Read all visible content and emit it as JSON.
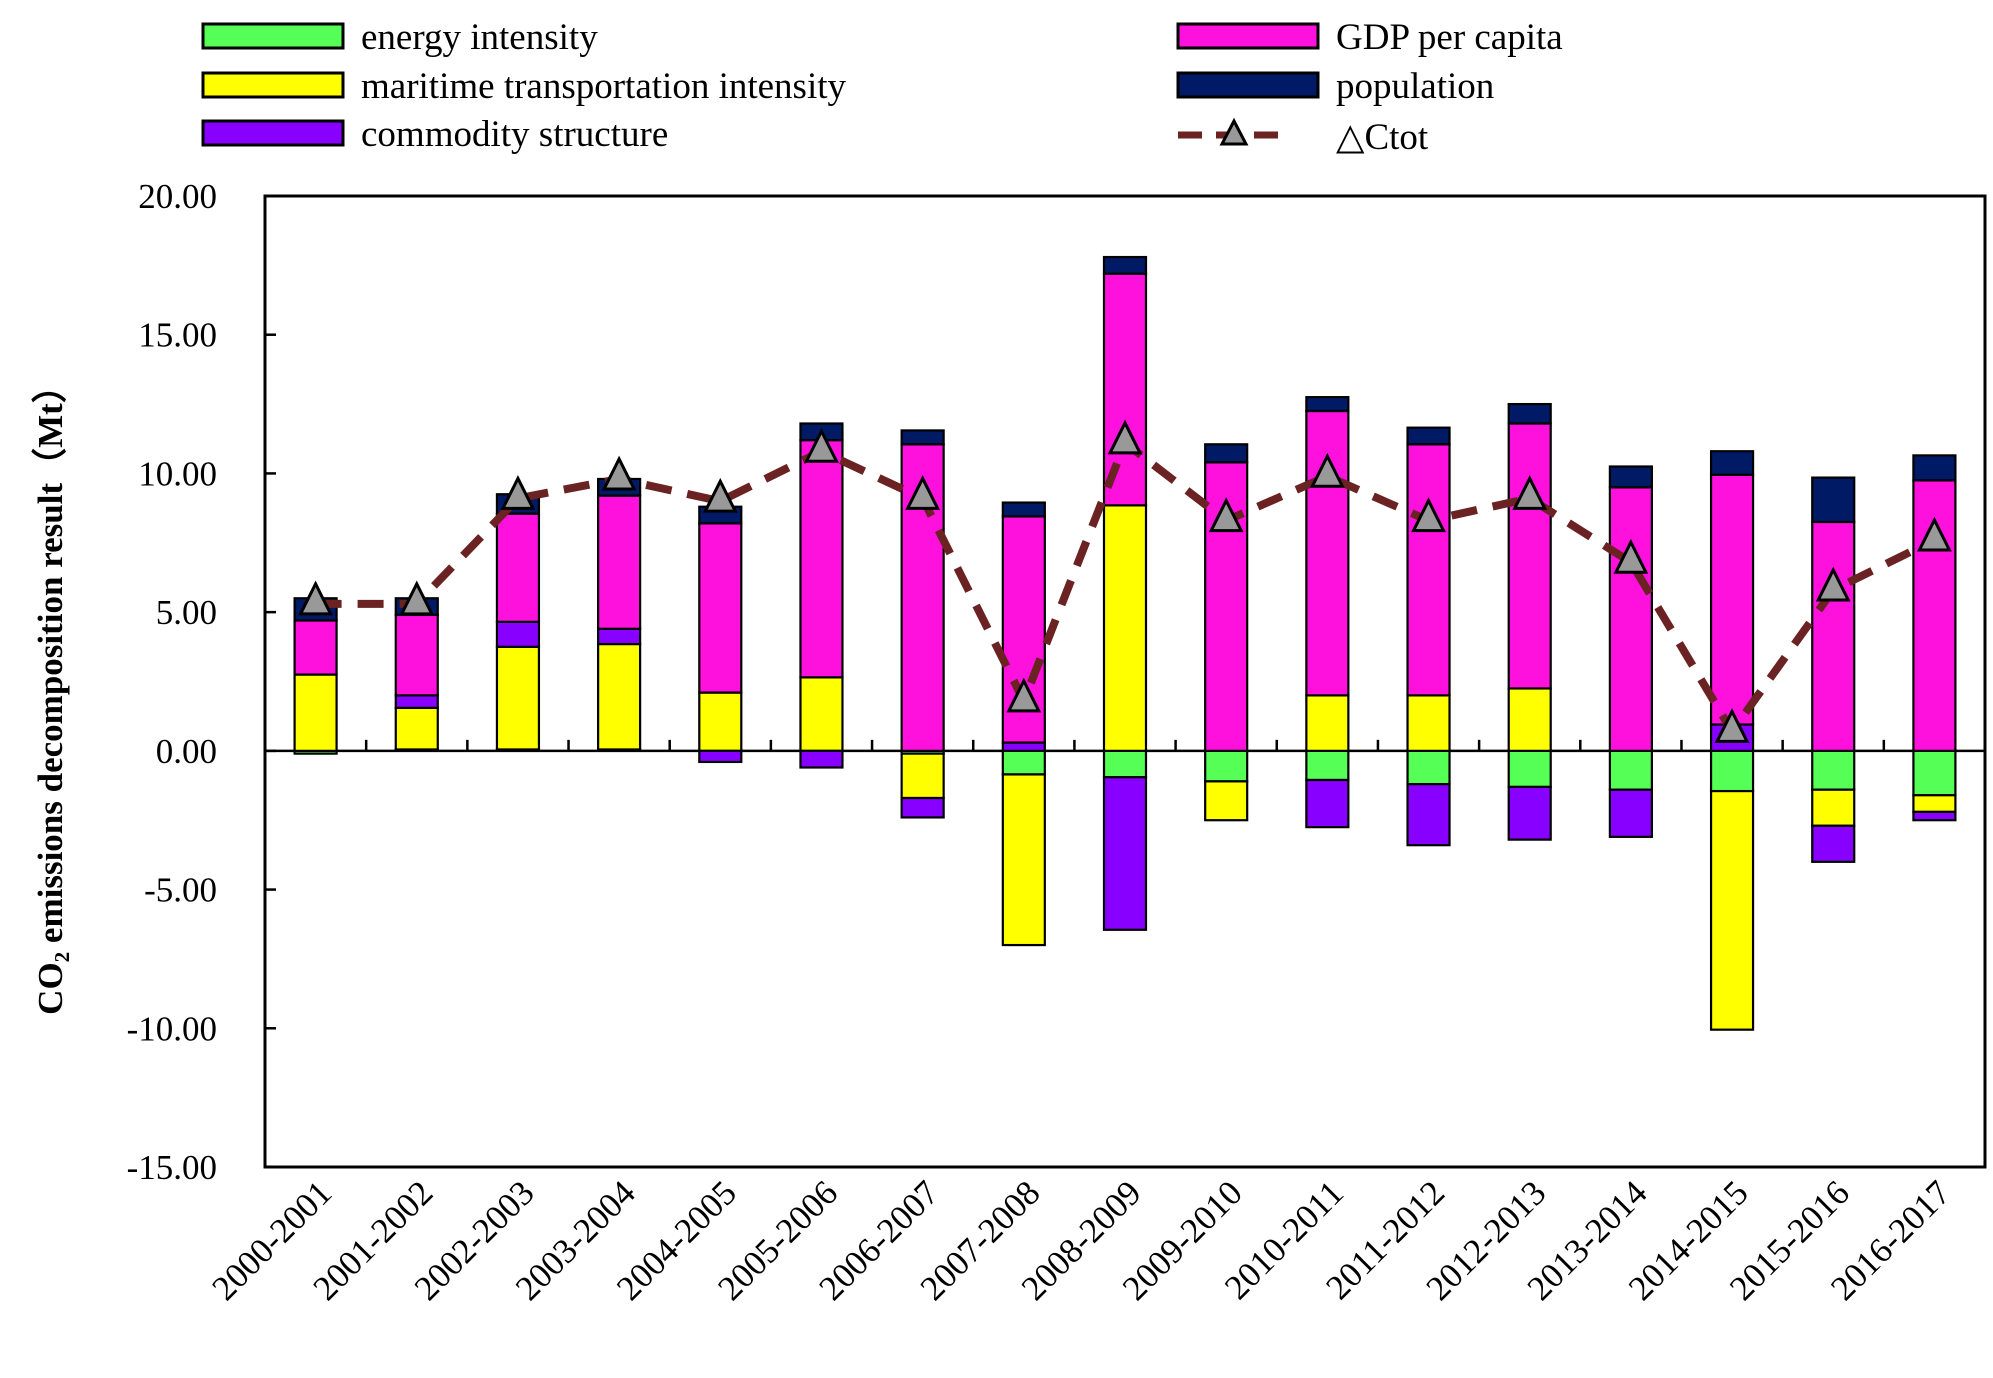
{
  "chart_data": {
    "type": "bar",
    "stacked": true,
    "ylabel": "CO₂ emissions decomposition result（Mt）",
    "ylim": [
      -15,
      20
    ],
    "yticks": [
      20,
      15,
      10,
      5,
      0,
      -5,
      -10,
      -15
    ],
    "ytick_labels": [
      "20.00",
      "15.00",
      "10.00",
      "5.00",
      "0.00",
      "-5.00",
      "-10.00",
      "-15.00"
    ],
    "categories": [
      "2000-2001",
      "2001-2002",
      "2002-2003",
      "2003-2004",
      "2004-2005",
      "2005-2006",
      "2006-2007",
      "2007-2008",
      "2008-2009",
      "2009-2010",
      "2010-2011",
      "2011-2012",
      "2012-2013",
      "2013-2014",
      "2014-2015",
      "2015-2016",
      "2016-2017"
    ],
    "series": [
      {
        "name": "energy intensity",
        "color": "#55ff55",
        "values": [
          -0.1,
          0.05,
          0.05,
          0.05,
          0.0,
          0.0,
          -0.1,
          -0.85,
          -0.95,
          -1.1,
          -1.05,
          -1.2,
          -1.3,
          -1.4,
          -1.45,
          -1.4,
          -1.6
        ]
      },
      {
        "name": "maritime transportation intensity",
        "color": "#ffff00",
        "values": [
          2.75,
          1.5,
          3.7,
          3.8,
          2.1,
          2.65,
          -1.6,
          -6.15,
          8.85,
          -1.4,
          2.0,
          2.0,
          2.25,
          0.0,
          -8.6,
          -1.3,
          -0.6
        ]
      },
      {
        "name": "commodity structure",
        "color": "#8800ff",
        "values": [
          0.0,
          0.45,
          0.9,
          0.55,
          -0.4,
          -0.6,
          -0.7,
          0.3,
          -5.5,
          0.0,
          -1.7,
          -2.2,
          -1.9,
          -1.7,
          0.95,
          -1.3,
          -0.3
        ]
      },
      {
        "name": "GDP per capita",
        "color": "#ff11dd",
        "values": [
          1.95,
          2.9,
          3.9,
          4.8,
          6.1,
          8.55,
          11.05,
          8.15,
          8.35,
          10.4,
          10.25,
          9.05,
          9.55,
          9.5,
          9.0,
          8.25,
          9.75
        ]
      },
      {
        "name": "population",
        "color": "#001a66",
        "values": [
          0.8,
          0.6,
          0.7,
          0.6,
          0.6,
          0.6,
          0.5,
          0.5,
          0.6,
          0.65,
          0.5,
          0.6,
          0.7,
          0.75,
          0.85,
          1.6,
          0.9
        ]
      }
    ],
    "line": {
      "name": "△Ctot",
      "color": "#6b2222",
      "values": [
        5.3,
        5.3,
        9.1,
        9.8,
        9.0,
        10.8,
        9.1,
        1.8,
        11.1,
        8.3,
        9.9,
        8.3,
        9.1,
        6.8,
        0.7,
        5.8,
        7.6
      ]
    },
    "legend_position": "top"
  }
}
